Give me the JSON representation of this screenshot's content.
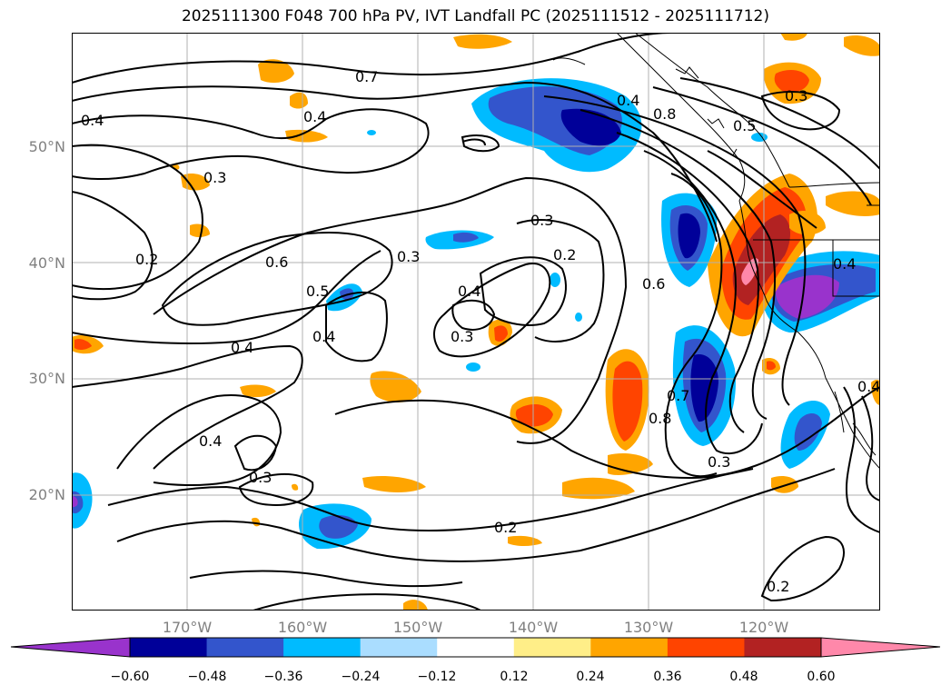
{
  "title": "2025111300 F048 700 hPa PV, IVT Landfall PC (2025111512 - 2025111712)",
  "map": {
    "lat_labels": [
      "50°N",
      "40°N",
      "30°N",
      "20°N"
    ],
    "lon_labels": [
      "170°W",
      "160°W",
      "150°W",
      "140°W",
      "130°W",
      "120°W"
    ],
    "contour_labels": [
      "0.7",
      "0.4",
      "0.4",
      "0.3",
      "0.2",
      "0.6",
      "0.5",
      "0.4",
      "0.4",
      "0.3",
      "0.3",
      "0.4",
      "0.2",
      "0.3",
      "0.6",
      "0.4",
      "0.7",
      "0.8",
      "0.3",
      "0.2",
      "0.4",
      "0.3",
      "0.2",
      "0.3",
      "0.5",
      "0.8",
      "0.4",
      "0.4"
    ],
    "grid": true,
    "colors": {
      "neg_060": "#9933cc",
      "neg_048": "#000099",
      "neg_036": "#3355cc",
      "neg_024": "#00bbff",
      "neg_012": "#aaddff",
      "pos_012": "#ffee88",
      "pos_024": "#ffa500",
      "pos_036": "#ff4400",
      "pos_048": "#b22222",
      "pos_060": "#ff88aa"
    }
  },
  "colorbar": {
    "ticks": [
      "−0.60",
      "−0.48",
      "−0.36",
      "−0.24",
      "−0.12",
      "0.12",
      "0.24",
      "0.36",
      "0.48",
      "0.60"
    ],
    "segment_colors": [
      "#9933cc",
      "#000099",
      "#3355cc",
      "#00bbff",
      "#aaddff",
      "#ffffff",
      "#ffee88",
      "#ffa500",
      "#ff4400",
      "#b22222",
      "#ff88aa"
    ]
  }
}
